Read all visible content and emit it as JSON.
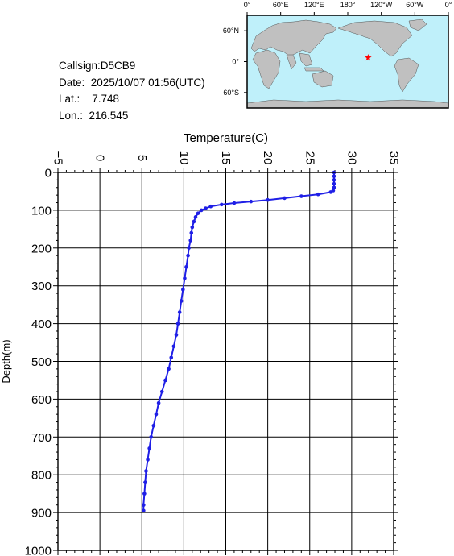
{
  "header": {
    "callsign": "Callsign:D5CB9",
    "date": "Date:  2025/10/07 01:56(UTC)",
    "lat": "Lat.:    7.748",
    "lon": "Lon.:  216.545"
  },
  "map": {
    "top_labels": [
      "0°",
      "60°E",
      "120°E",
      "180°",
      "120°W",
      "60°W",
      "0°"
    ],
    "side_labels": [
      "60°N",
      "0°",
      "60°S"
    ],
    "ocean_color": "#bff0fa",
    "land_color": "#c0c0c0",
    "marker": {
      "lat": 7.748,
      "lon": 216.545,
      "color": "#ff0000",
      "symbol": "star-icon"
    }
  },
  "chart_data": {
    "type": "line",
    "title": "",
    "xlabel": "Temperature(C)",
    "ylabel": "Depth(m)",
    "xlim": [
      -5,
      35
    ],
    "ylim": [
      0,
      1000
    ],
    "x_ticks": [
      -5,
      0,
      5,
      10,
      15,
      20,
      25,
      30,
      35
    ],
    "y_ticks": [
      0,
      100,
      200,
      300,
      400,
      500,
      600,
      700,
      800,
      900,
      1000
    ],
    "grid": true,
    "series": [
      {
        "color": "#1f1fe6",
        "points": [
          [
            27.9,
            0
          ],
          [
            27.9,
            10
          ],
          [
            27.9,
            20
          ],
          [
            27.9,
            30
          ],
          [
            27.9,
            40
          ],
          [
            27.8,
            48
          ],
          [
            27.5,
            52
          ],
          [
            26.0,
            58
          ],
          [
            24.0,
            63
          ],
          [
            22.0,
            68
          ],
          [
            20.0,
            73
          ],
          [
            18.0,
            77
          ],
          [
            16.0,
            81
          ],
          [
            14.5,
            85
          ],
          [
            13.2,
            90
          ],
          [
            12.6,
            95
          ],
          [
            12.1,
            100
          ],
          [
            11.7,
            108
          ],
          [
            11.4,
            118
          ],
          [
            11.2,
            130
          ],
          [
            11.0,
            145
          ],
          [
            10.9,
            160
          ],
          [
            10.8,
            180
          ],
          [
            10.6,
            200
          ],
          [
            10.5,
            220
          ],
          [
            10.3,
            250
          ],
          [
            10.1,
            280
          ],
          [
            9.9,
            310
          ],
          [
            9.7,
            340
          ],
          [
            9.5,
            370
          ],
          [
            9.3,
            400
          ],
          [
            9.1,
            430
          ],
          [
            8.8,
            460
          ],
          [
            8.5,
            490
          ],
          [
            8.2,
            520
          ],
          [
            7.8,
            550
          ],
          [
            7.4,
            580
          ],
          [
            7.0,
            610
          ],
          [
            6.7,
            640
          ],
          [
            6.4,
            670
          ],
          [
            6.1,
            700
          ],
          [
            5.9,
            730
          ],
          [
            5.7,
            760
          ],
          [
            5.5,
            790
          ],
          [
            5.4,
            820
          ],
          [
            5.3,
            850
          ],
          [
            5.2,
            880
          ],
          [
            5.2,
            895
          ]
        ]
      }
    ]
  }
}
